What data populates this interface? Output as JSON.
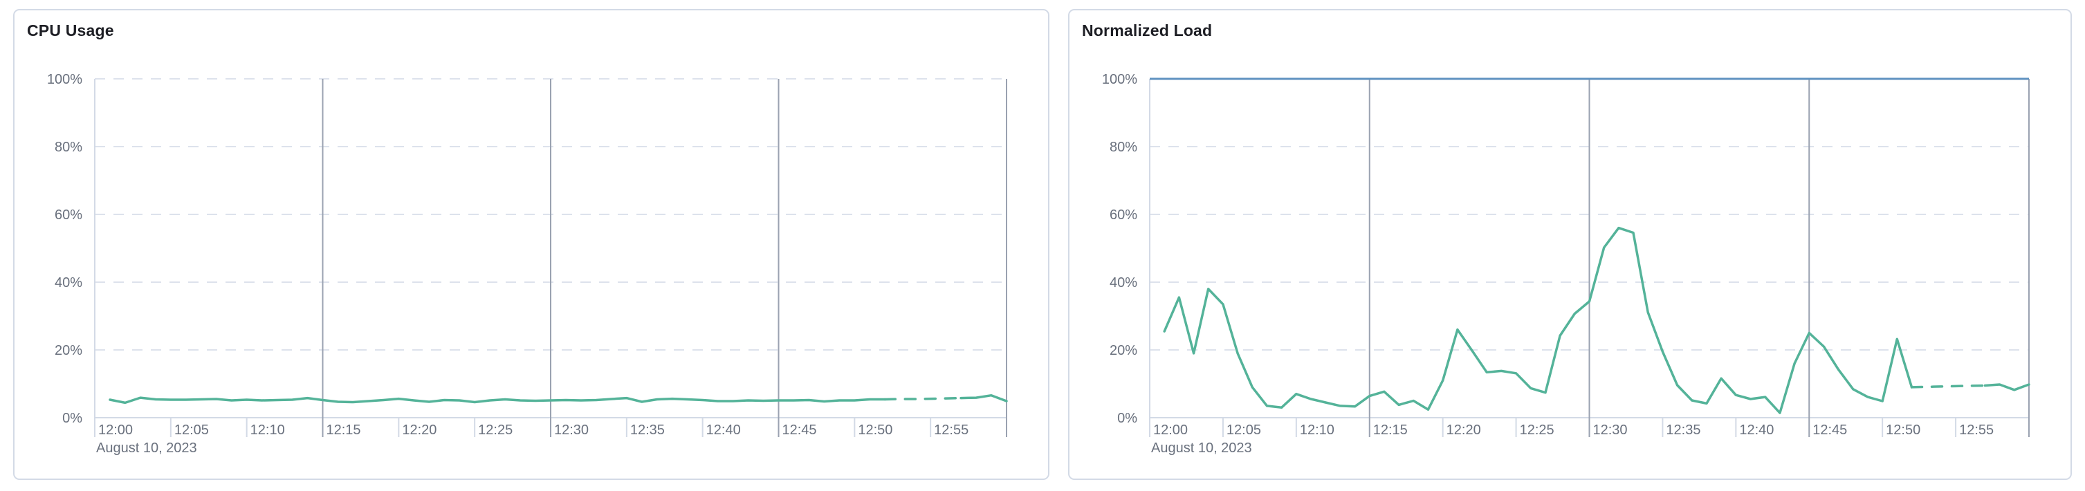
{
  "page": {
    "background": "#ffffff",
    "panel_border_color": "#d3dae6"
  },
  "panels": [
    {
      "title": "CPU Usage"
    },
    {
      "title": "Normalized Load"
    }
  ],
  "chart_data": [
    {
      "type": "line",
      "title": "CPU Usage",
      "legend": "none",
      "grid": "on",
      "x_axis": {
        "date_label": "August 10, 2023",
        "tick_labels": [
          "12:00",
          "12:05",
          "12:10",
          "12:15",
          "12:20",
          "12:25",
          "12:30",
          "12:35",
          "12:40",
          "12:45",
          "12:50",
          "12:55"
        ],
        "tick_interval_minutes": 5,
        "range_minutes": [
          0,
          60
        ],
        "major_gridline_minutes": [
          15,
          30,
          45,
          60
        ]
      },
      "y_axis": {
        "tick_labels": [
          "0%",
          "20%",
          "40%",
          "60%",
          "80%",
          "100%"
        ],
        "range": [
          0,
          100
        ],
        "gridline_style": "dashed"
      },
      "series": [
        {
          "name": "cpu-usage",
          "color": "#54b399",
          "start_minute": 1,
          "dashed_segment_minutes": [
            52,
            57
          ],
          "values": [
            5.3,
            4.4,
            5.9,
            5.4,
            5.3,
            5.3,
            5.4,
            5.5,
            5.1,
            5.3,
            5.1,
            5.2,
            5.3,
            5.8,
            5.2,
            4.7,
            4.6,
            4.9,
            5.2,
            5.6,
            5.1,
            4.7,
            5.2,
            5.1,
            4.6,
            5.1,
            5.4,
            5.1,
            5.0,
            5.1,
            5.2,
            5.1,
            5.2,
            5.5,
            5.8,
            4.7,
            5.4,
            5.6,
            5.4,
            5.2,
            4.9,
            4.9,
            5.1,
            5.0,
            5.1,
            5.1,
            5.2,
            4.8,
            5.1,
            5.1,
            5.4,
            5.4,
            5.5,
            5.5,
            5.6,
            5.7,
            5.8,
            5.9,
            6.6,
            4.9
          ]
        }
      ]
    },
    {
      "type": "line",
      "title": "Normalized Load",
      "legend": "none",
      "grid": "on",
      "x_axis": {
        "date_label": "August 10, 2023",
        "tick_labels": [
          "12:00",
          "12:05",
          "12:10",
          "12:15",
          "12:20",
          "12:25",
          "12:30",
          "12:35",
          "12:40",
          "12:45",
          "12:50",
          "12:55"
        ],
        "tick_interval_minutes": 5,
        "range_minutes": [
          0,
          60
        ],
        "major_gridline_minutes": [
          15,
          30,
          45,
          60
        ]
      },
      "y_axis": {
        "tick_labels": [
          "0%",
          "20%",
          "40%",
          "60%",
          "80%",
          "100%"
        ],
        "range": [
          0,
          100
        ],
        "gridline_style": "dashed"
      },
      "series": [
        {
          "name": "normalized-load",
          "color": "#54b399",
          "start_minute": 1,
          "dashed_segment_minutes": [
            52,
            57
          ],
          "values": [
            25.5,
            35.5,
            19.0,
            38.0,
            33.5,
            19.0,
            9.0,
            3.5,
            3.0,
            7.0,
            5.5,
            4.5,
            3.5,
            3.3,
            6.4,
            7.7,
            3.8,
            5.0,
            2.4,
            11.0,
            26.0,
            19.8,
            13.4,
            13.8,
            13.1,
            8.7,
            7.4,
            24.2,
            30.7,
            34.3,
            50.2,
            56.0,
            54.6,
            31.1,
            19.5,
            9.6,
            5.1,
            4.2,
            11.6,
            6.7,
            5.5,
            6.1,
            1.4,
            16.0,
            25.0,
            21.0,
            14.2,
            8.4,
            6.1,
            4.9,
            23.2,
            9.0,
            9.1,
            9.2,
            9.3,
            9.4,
            9.5,
            9.8,
            8.2,
            9.8
          ]
        },
        {
          "name": "load-limit-100",
          "type": "ceiling-line",
          "color": "#6092c0",
          "value": 100
        }
      ],
      "colors": {
        "series_green": "#54b399",
        "limit_blue": "#6092c0",
        "gridline": "#dde2ec",
        "major_gridline": "#9aa2b1",
        "axis_line": "#d3dae6",
        "label_text": "#69707d",
        "title_text": "#1d1e24"
      }
    }
  ]
}
